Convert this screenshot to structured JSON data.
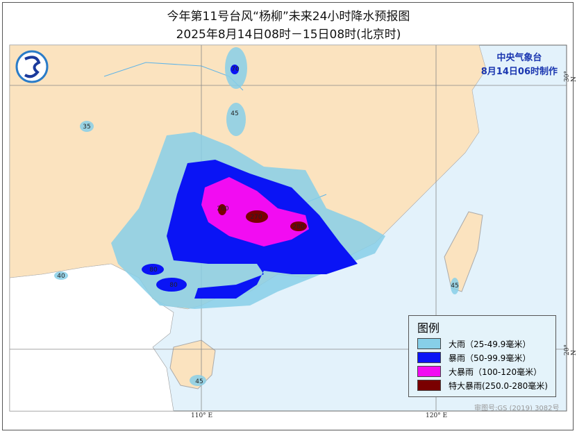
{
  "title": "今年第11号台风“杨柳”未来24小时降水预报图",
  "subtitle": "2025年8月14日08时－15日08时(北京时)",
  "organization": "中央气象台",
  "issued": "8月14日06时制作",
  "logo": {
    "icon": "cma-logo",
    "text": "中国气象局"
  },
  "legend": {
    "title": "图例",
    "items": [
      {
        "label": "大雨（25-49.9毫米）",
        "color": "#87cfe8"
      },
      {
        "label": "暴雨（50-99.9毫米）",
        "color": "#0a14f5"
      },
      {
        "label": "大暴雨（100-120毫米）",
        "color": "#f20cf2"
      },
      {
        "label": "特大暴雨(250.0-280毫米)",
        "color": "#7a0000"
      }
    ]
  },
  "approval": "审图号:GS (2019) 3082号",
  "axes": {
    "lon": [
      "110° E",
      "120° E"
    ],
    "lat": [
      "30° N",
      "20° N"
    ]
  },
  "labels": [
    "70",
    "45",
    "35",
    "260",
    "270",
    "280",
    "80",
    "80",
    "40",
    "45",
    "45"
  ],
  "colors": {
    "land": "#fbe3bf",
    "sea": "#e3f2fb",
    "foreign": "#ffffff",
    "river": "#5fb4e8"
  }
}
